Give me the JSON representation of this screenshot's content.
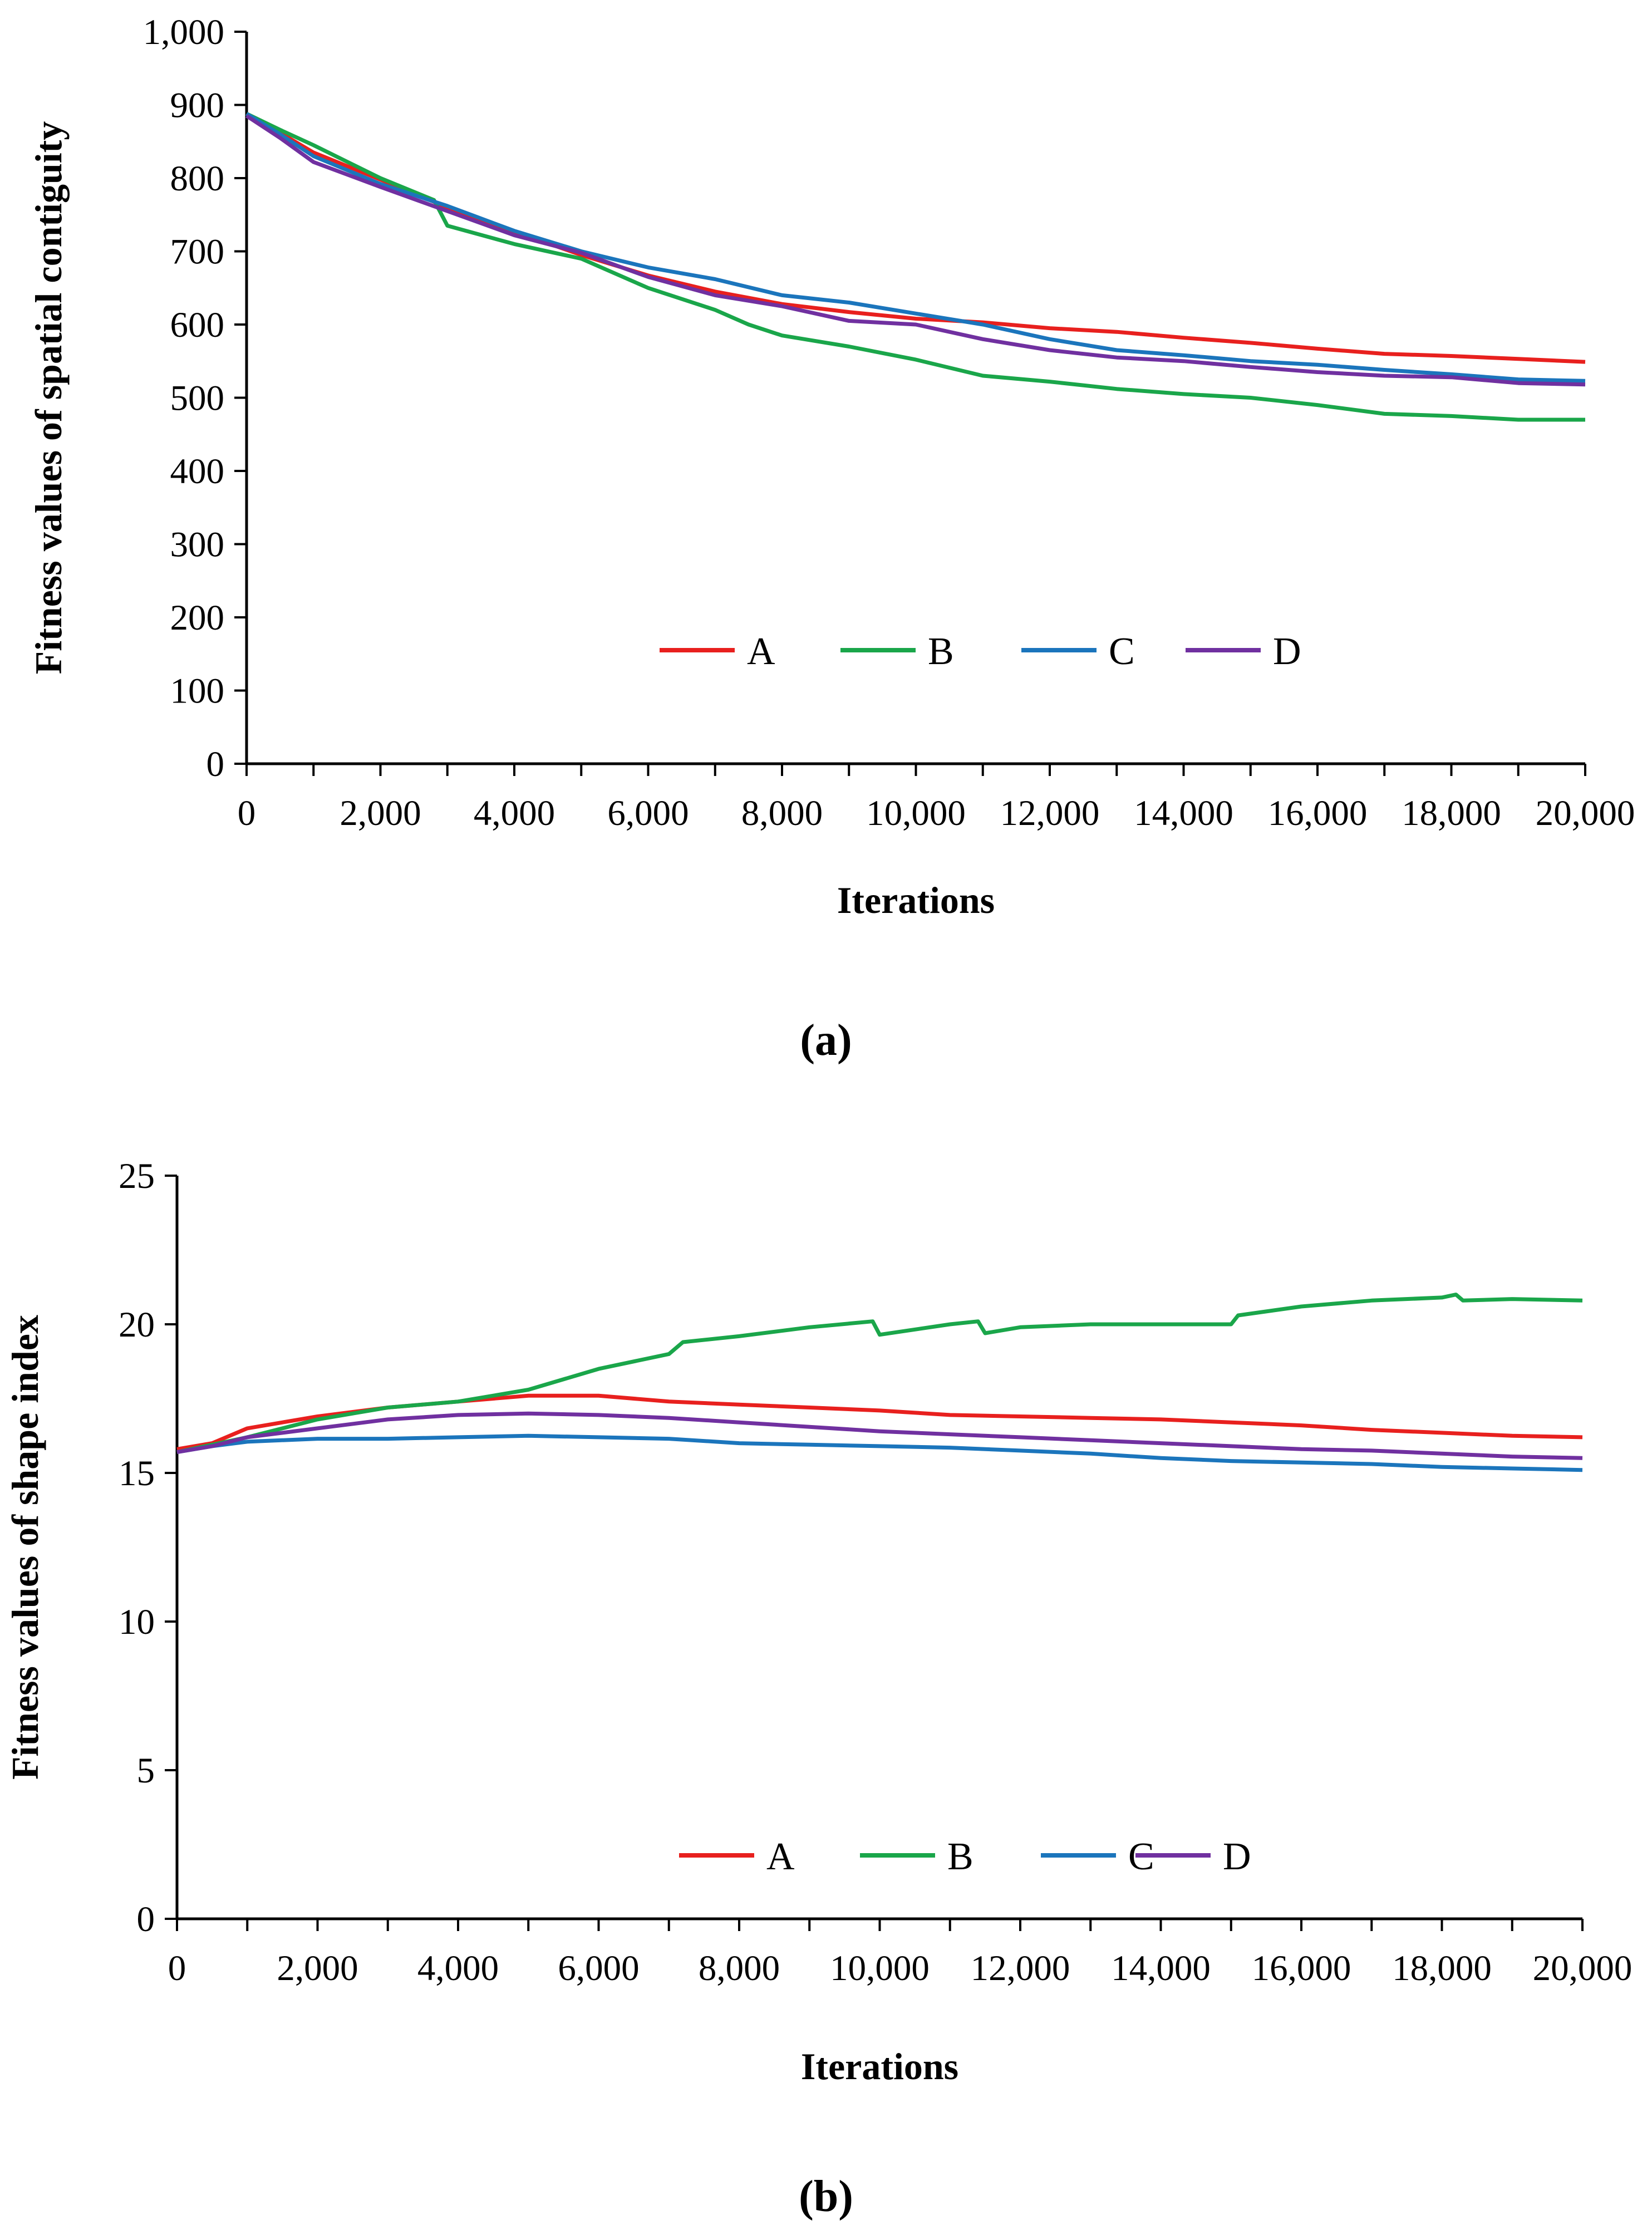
{
  "chart_data": [
    {
      "type": "line",
      "caption": "(a)",
      "title": "",
      "xlabel": "Iterations",
      "ylabel": "Fitness values of spatial contiguity",
      "xlim": [
        0,
        20000
      ],
      "ylim": [
        0,
        1000
      ],
      "x_ticks": [
        0,
        2000,
        4000,
        6000,
        8000,
        10000,
        12000,
        14000,
        16000,
        18000,
        20000
      ],
      "x_tick_labels": [
        "0",
        "2,000",
        "4,000",
        "6,000",
        "8,000",
        "10,000",
        "12,000",
        "14,000",
        "16,000",
        "18,000",
        "20,000"
      ],
      "y_ticks": [
        0,
        100,
        200,
        300,
        400,
        500,
        600,
        700,
        800,
        900,
        1000
      ],
      "y_tick_labels": [
        "0",
        "100",
        "200",
        "300",
        "400",
        "500",
        "600",
        "700",
        "800",
        "900",
        "1,000"
      ],
      "grid": false,
      "legend": "center, single row",
      "series": [
        {
          "name": "A",
          "color": "#e8201e",
          "x": [
            0,
            500,
            1000,
            2000,
            3000,
            4000,
            5000,
            6000,
            7000,
            8000,
            9000,
            10000,
            11000,
            12000,
            13000,
            14000,
            15000,
            16000,
            17000,
            18000,
            19000,
            20000
          ],
          "y": [
            888,
            862,
            835,
            798,
            760,
            727,
            695,
            667,
            645,
            628,
            617,
            608,
            603,
            595,
            590,
            582,
            575,
            567,
            560,
            557,
            553,
            549
          ]
        },
        {
          "name": "B",
          "color": "#1aa64a",
          "x": [
            0,
            500,
            1000,
            2000,
            2800,
            3000,
            4000,
            5000,
            6000,
            7000,
            7500,
            8000,
            9000,
            10000,
            11000,
            12000,
            13000,
            14000,
            15000,
            16000,
            17000,
            18000,
            19000,
            20000
          ],
          "y": [
            888,
            866,
            845,
            800,
            770,
            735,
            710,
            690,
            650,
            620,
            600,
            585,
            570,
            552,
            530,
            522,
            512,
            505,
            500,
            490,
            478,
            475,
            470,
            470
          ]
        },
        {
          "name": "C",
          "color": "#1b75bc",
          "x": [
            0,
            500,
            1000,
            2000,
            3000,
            4000,
            5000,
            6000,
            7000,
            8000,
            9000,
            10000,
            11000,
            12000,
            13000,
            14000,
            15000,
            16000,
            17000,
            18000,
            19000,
            20000
          ],
          "y": [
            888,
            860,
            830,
            792,
            762,
            728,
            700,
            678,
            662,
            640,
            630,
            615,
            600,
            580,
            565,
            558,
            550,
            545,
            538,
            532,
            525,
            523
          ]
        },
        {
          "name": "D",
          "color": "#7030a0",
          "x": [
            0,
            500,
            1000,
            2000,
            3000,
            4000,
            5000,
            6000,
            7000,
            8000,
            9000,
            10000,
            11000,
            12000,
            13000,
            14000,
            15000,
            16000,
            17000,
            18000,
            19000,
            20000
          ],
          "y": [
            885,
            855,
            822,
            788,
            755,
            722,
            698,
            665,
            640,
            625,
            605,
            600,
            580,
            565,
            555,
            550,
            542,
            535,
            530,
            528,
            520,
            518
          ]
        }
      ]
    },
    {
      "type": "line",
      "caption": "(b)",
      "title": "",
      "xlabel": "Iterations",
      "ylabel": "Fitness values of shape index",
      "xlim": [
        0,
        20000
      ],
      "ylim": [
        0,
        25
      ],
      "x_ticks": [
        0,
        2000,
        4000,
        6000,
        8000,
        10000,
        12000,
        14000,
        16000,
        18000,
        20000
      ],
      "x_tick_labels": [
        "0",
        "2,000",
        "4,000",
        "6,000",
        "8,000",
        "10,000",
        "12,000",
        "14,000",
        "16,000",
        "18,000",
        "20,000"
      ],
      "y_ticks": [
        0,
        5,
        10,
        15,
        20,
        25
      ],
      "y_tick_labels": [
        "0",
        "5",
        "10",
        "15",
        "20",
        "25"
      ],
      "grid": false,
      "legend": "center-bottom, single row",
      "series": [
        {
          "name": "A",
          "color": "#e8201e",
          "x": [
            0,
            500,
            1000,
            2000,
            3000,
            4000,
            5000,
            6000,
            7000,
            8000,
            9000,
            10000,
            11000,
            12000,
            13000,
            14000,
            15000,
            16000,
            17000,
            18000,
            19000,
            20000
          ],
          "y": [
            15.8,
            16.0,
            16.5,
            16.9,
            17.2,
            17.4,
            17.6,
            17.6,
            17.4,
            17.3,
            17.2,
            17.1,
            16.95,
            16.9,
            16.85,
            16.8,
            16.7,
            16.6,
            16.45,
            16.35,
            16.25,
            16.2
          ]
        },
        {
          "name": "B",
          "color": "#1aa64a",
          "x": [
            0,
            1000,
            2000,
            3000,
            4000,
            5000,
            6000,
            7000,
            7200,
            8000,
            9000,
            9900,
            10000,
            11000,
            11400,
            11500,
            12000,
            13000,
            14000,
            15000,
            15100,
            16000,
            17000,
            18000,
            18200,
            18300,
            19000,
            20000
          ],
          "y": [
            15.7,
            16.2,
            16.8,
            17.2,
            17.4,
            17.8,
            18.5,
            19.0,
            19.4,
            19.6,
            19.9,
            20.1,
            19.65,
            20.0,
            20.1,
            19.7,
            19.9,
            20.0,
            20.0,
            20.0,
            20.3,
            20.6,
            20.8,
            20.9,
            21.0,
            20.8,
            20.85,
            20.8
          ]
        },
        {
          "name": "C",
          "color": "#1b75bc",
          "x": [
            0,
            500,
            1000,
            2000,
            3000,
            4000,
            5000,
            6000,
            7000,
            8000,
            9000,
            10000,
            11000,
            12000,
            13000,
            14000,
            15000,
            16000,
            17000,
            18000,
            19000,
            20000
          ],
          "y": [
            15.7,
            15.9,
            16.05,
            16.15,
            16.15,
            16.2,
            16.25,
            16.2,
            16.15,
            16.0,
            15.95,
            15.9,
            15.85,
            15.75,
            15.65,
            15.5,
            15.4,
            15.35,
            15.3,
            15.2,
            15.15,
            15.1
          ]
        },
        {
          "name": "D",
          "color": "#7030a0",
          "x": [
            0,
            500,
            1000,
            2000,
            3000,
            4000,
            5000,
            6000,
            7000,
            8000,
            9000,
            10000,
            11000,
            12000,
            13000,
            14000,
            15000,
            16000,
            17000,
            18000,
            19000,
            20000
          ],
          "y": [
            15.7,
            15.9,
            16.2,
            16.5,
            16.8,
            16.95,
            17.0,
            16.95,
            16.85,
            16.7,
            16.55,
            16.4,
            16.3,
            16.2,
            16.1,
            16.0,
            15.9,
            15.8,
            15.75,
            15.65,
            15.55,
            15.5
          ]
        }
      ]
    }
  ]
}
